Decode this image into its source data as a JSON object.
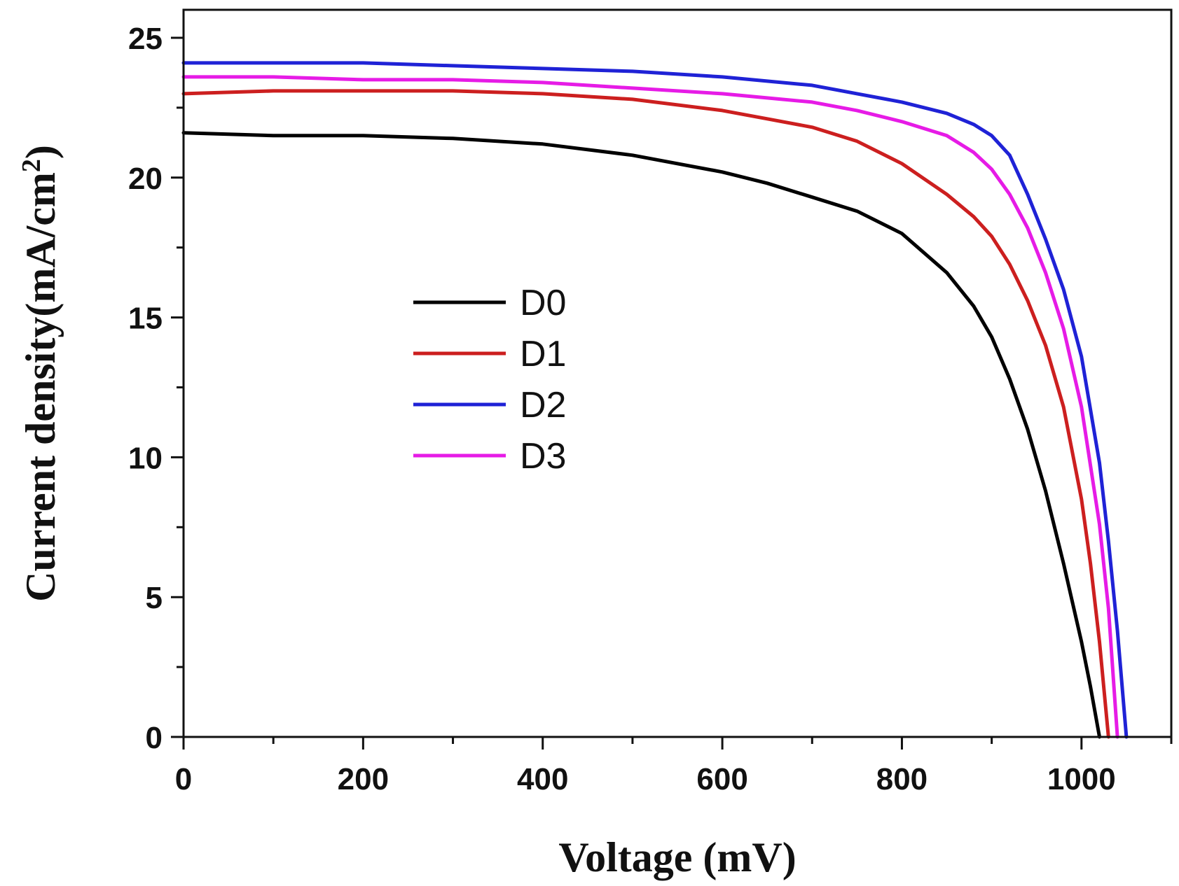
{
  "chart_data": {
    "type": "line",
    "title": "",
    "xlabel": "Voltage (mV)",
    "ylabel": "Current density(mA/cm²)",
    "ylabel_main": "Current density(mA/cm",
    "ylabel_sup": "2",
    "ylabel_close": ")",
    "xlim": [
      0,
      1100
    ],
    "ylim": [
      0,
      26
    ],
    "x_ticks": [
      0,
      200,
      400,
      600,
      800,
      1000
    ],
    "x_minor_ticks": [
      100,
      300,
      500,
      700,
      900,
      1100
    ],
    "y_ticks": [
      0,
      5,
      10,
      15,
      20,
      25
    ],
    "y_minor_ticks": [
      2.5,
      7.5,
      12.5,
      17.5,
      22.5
    ],
    "x_tick_labels": [
      "0",
      "200",
      "400",
      "600",
      "800",
      "1000"
    ],
    "y_tick_labels": [
      "0",
      "5",
      "10",
      "15",
      "20",
      "25"
    ],
    "grid": false,
    "legend_position": "center-left",
    "series": [
      {
        "name": "D0",
        "color": "#000000",
        "x": [
          0,
          100,
          200,
          300,
          400,
          500,
          600,
          650,
          700,
          750,
          800,
          850,
          880,
          900,
          920,
          940,
          960,
          980,
          1000,
          1010,
          1020
        ],
        "y": [
          21.6,
          21.5,
          21.5,
          21.4,
          21.2,
          20.8,
          20.2,
          19.8,
          19.3,
          18.8,
          18.0,
          16.6,
          15.4,
          14.3,
          12.8,
          11.0,
          8.8,
          6.2,
          3.4,
          1.8,
          0
        ]
      },
      {
        "name": "D1",
        "color": "#cc1f1f",
        "x": [
          0,
          100,
          200,
          300,
          400,
          500,
          600,
          650,
          700,
          750,
          800,
          850,
          880,
          900,
          920,
          940,
          960,
          980,
          1000,
          1010,
          1020,
          1030
        ],
        "y": [
          23.0,
          23.1,
          23.1,
          23.1,
          23.0,
          22.8,
          22.4,
          22.1,
          21.8,
          21.3,
          20.5,
          19.4,
          18.6,
          17.9,
          16.9,
          15.6,
          14.0,
          11.8,
          8.5,
          6.2,
          3.4,
          0
        ]
      },
      {
        "name": "D2",
        "color": "#1f22d6",
        "x": [
          0,
          100,
          200,
          300,
          400,
          500,
          600,
          700,
          750,
          800,
          850,
          880,
          900,
          920,
          940,
          960,
          980,
          1000,
          1020,
          1030,
          1040,
          1050
        ],
        "y": [
          24.1,
          24.1,
          24.1,
          24.0,
          23.9,
          23.8,
          23.6,
          23.3,
          23.0,
          22.7,
          22.3,
          21.9,
          21.5,
          20.8,
          19.4,
          17.8,
          16.0,
          13.6,
          9.8,
          7.0,
          3.8,
          0
        ]
      },
      {
        "name": "D3",
        "color": "#e61be6",
        "x": [
          0,
          100,
          200,
          300,
          400,
          500,
          600,
          700,
          750,
          800,
          850,
          880,
          900,
          920,
          940,
          960,
          980,
          1000,
          1020,
          1030,
          1040
        ],
        "y": [
          23.6,
          23.6,
          23.5,
          23.5,
          23.4,
          23.2,
          23.0,
          22.7,
          22.4,
          22.0,
          21.5,
          20.9,
          20.3,
          19.4,
          18.2,
          16.6,
          14.6,
          11.8,
          7.6,
          4.6,
          0
        ]
      }
    ]
  }
}
